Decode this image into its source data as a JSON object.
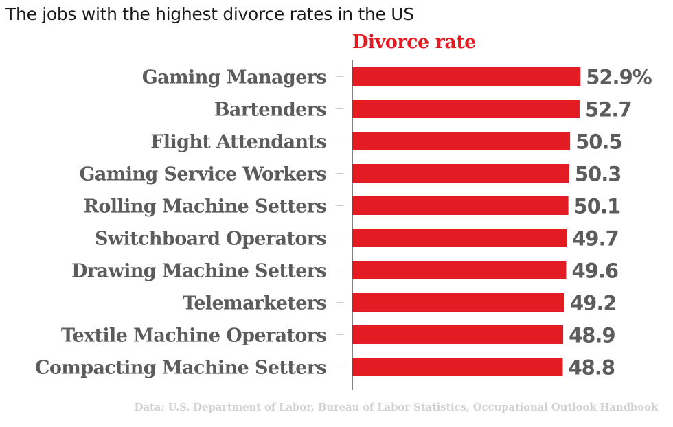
{
  "chart_data": {
    "type": "bar",
    "orientation": "horizontal",
    "title": "The jobs with the highest divorce rates in the US",
    "series_label": "Divorce rate",
    "categories": [
      "Gaming Managers",
      "Bartenders",
      "Flight Attendants",
      "Gaming Service Workers",
      "Rolling Machine Setters",
      "Switchboard Operators",
      "Drawing Machine Setters",
      "Telemarketers",
      "Textile Machine Operators",
      "Compacting Machine Setters"
    ],
    "values": [
      52.9,
      52.7,
      50.5,
      50.3,
      50.1,
      49.7,
      49.6,
      49.2,
      48.9,
      48.8
    ],
    "value_labels": [
      "52.9%",
      "52.7",
      "50.5",
      "50.3",
      "50.1",
      "49.7",
      "49.6",
      "49.2",
      "48.9",
      "48.8"
    ],
    "unit": "%",
    "xlim": [
      0,
      54
    ],
    "grid": false,
    "xlabel": "",
    "ylabel": "",
    "source": "Data: U.S. Department of Labor, Bureau of Labor Statistics, Occupational Outlook Handbook",
    "colors": {
      "bar": "#e31b23",
      "label": "#5c5c5c",
      "axis": "#555555",
      "tick": "#cccccc",
      "source": "#d2d2d2"
    }
  }
}
